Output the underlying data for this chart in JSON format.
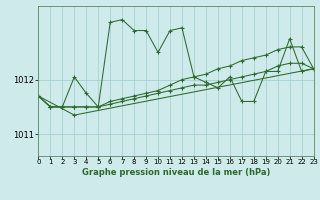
{
  "title": "Graphe pression niveau de la mer (hPa)",
  "background_color": "#ceeaea",
  "line_color": "#2d6a2d",
  "grid_color": "#9ecece",
  "x_min": 0,
  "x_max": 23,
  "y_min": 1010.6,
  "y_max": 1013.35,
  "y_ticks": [
    1011,
    1012
  ],
  "x_ticks": [
    0,
    1,
    2,
    3,
    4,
    5,
    6,
    7,
    8,
    9,
    10,
    11,
    12,
    13,
    14,
    15,
    16,
    17,
    18,
    19,
    20,
    21,
    22,
    23
  ],
  "series": [
    {
      "x": [
        0,
        1,
        2,
        3,
        4,
        5,
        6,
        7,
        8,
        9,
        10,
        11,
        12,
        13,
        14,
        15,
        16,
        17,
        18,
        19,
        20,
        21,
        22,
        23
      ],
      "y": [
        1011.7,
        1011.5,
        1011.5,
        1012.05,
        1011.75,
        1011.5,
        1013.05,
        1013.1,
        1012.9,
        1012.9,
        1012.5,
        1012.9,
        1012.95,
        1012.05,
        1011.95,
        1011.85,
        1012.05,
        1011.6,
        1011.6,
        1012.15,
        1012.15,
        1012.75,
        1012.15,
        1012.2
      ]
    },
    {
      "x": [
        0,
        3,
        23
      ],
      "y": [
        1011.7,
        1011.35,
        1012.2
      ]
    },
    {
      "x": [
        0,
        1,
        2,
        3,
        4,
        5,
        6,
        7,
        8,
        9,
        10,
        11,
        12,
        13,
        14,
        15,
        16,
        17,
        18,
        19,
        20,
        21,
        22,
        23
      ],
      "y": [
        1011.7,
        1011.5,
        1011.5,
        1011.5,
        1011.5,
        1011.5,
        1011.55,
        1011.6,
        1011.65,
        1011.7,
        1011.75,
        1011.8,
        1011.85,
        1011.9,
        1011.9,
        1011.95,
        1012.0,
        1012.05,
        1012.1,
        1012.15,
        1012.25,
        1012.3,
        1012.3,
        1012.2
      ]
    },
    {
      "x": [
        0,
        1,
        2,
        3,
        4,
        5,
        6,
        7,
        8,
        9,
        10,
        11,
        12,
        13,
        14,
        15,
        16,
        17,
        18,
        19,
        20,
        21,
        22,
        23
      ],
      "y": [
        1011.7,
        1011.5,
        1011.5,
        1011.5,
        1011.5,
        1011.5,
        1011.6,
        1011.65,
        1011.7,
        1011.75,
        1011.8,
        1011.9,
        1012.0,
        1012.05,
        1012.1,
        1012.2,
        1012.25,
        1012.35,
        1012.4,
        1012.45,
        1012.55,
        1012.6,
        1012.6,
        1012.2
      ]
    }
  ]
}
